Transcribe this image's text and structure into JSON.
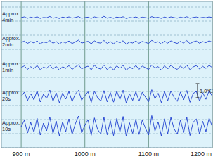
{
  "chart_data": {
    "type": "line",
    "x": [
      900,
      905,
      910,
      915,
      920,
      925,
      930,
      935,
      940,
      945,
      950,
      955,
      960,
      965,
      970,
      975,
      980,
      985,
      990,
      995,
      1000,
      1005,
      1010,
      1015,
      1020,
      1025,
      1030,
      1035,
      1040,
      1045,
      1050,
      1055,
      1060,
      1065,
      1070,
      1075,
      1080,
      1085,
      1090,
      1095,
      1100,
      1105,
      1110,
      1115,
      1120,
      1125,
      1130,
      1135,
      1140,
      1145,
      1150,
      1155,
      1160,
      1165,
      1170,
      1175,
      1180,
      1185,
      1190,
      1195,
      1200
    ],
    "series": [
      {
        "name": "Approx. 4min",
        "color": "#1f3fd0",
        "values": [
          9.25,
          9.3,
          9.2,
          9.28,
          9.22,
          9.31,
          9.19,
          9.26,
          9.24,
          9.33,
          9.2,
          9.27,
          9.18,
          9.29,
          9.23,
          9.3,
          9.21,
          9.26,
          9.32,
          9.2,
          9.25,
          9.28,
          9.19,
          9.3,
          9.24,
          9.22,
          9.34,
          9.21,
          9.27,
          9.2,
          9.29,
          9.24,
          9.31,
          9.18,
          9.26,
          9.23,
          9.3,
          9.21,
          9.28,
          9.25,
          9.2,
          9.32,
          9.24,
          9.27,
          9.19,
          9.29,
          9.22,
          9.3,
          9.25,
          9.21,
          9.28,
          9.23,
          9.31,
          9.2,
          9.26,
          9.29,
          9.22,
          9.27,
          9.24,
          9.3,
          9.25
        ]
      },
      {
        "name": "Approx. 2min",
        "color": "#1f3fd0",
        "values": [
          7.5,
          7.58,
          7.42,
          7.55,
          7.45,
          7.6,
          7.4,
          7.52,
          7.47,
          7.62,
          7.43,
          7.56,
          7.38,
          7.54,
          7.46,
          7.59,
          7.41,
          7.53,
          7.65,
          7.44,
          7.51,
          7.57,
          7.39,
          7.6,
          7.48,
          7.44,
          7.63,
          7.42,
          7.55,
          7.4,
          7.58,
          7.46,
          7.61,
          7.37,
          7.52,
          7.45,
          7.59,
          7.43,
          7.56,
          7.5,
          7.41,
          7.64,
          7.47,
          7.54,
          7.38,
          7.58,
          7.44,
          7.6,
          7.49,
          7.42,
          7.57,
          7.45,
          7.62,
          7.4,
          7.53,
          7.59,
          7.43,
          7.55,
          7.47,
          7.61,
          7.5
        ]
      },
      {
        "name": "Approx. 1min",
        "color": "#1f3fd0",
        "values": [
          5.7,
          5.82,
          5.58,
          5.76,
          5.62,
          5.85,
          5.55,
          5.73,
          5.65,
          5.88,
          5.6,
          5.79,
          5.52,
          5.77,
          5.64,
          5.84,
          5.57,
          5.75,
          5.9,
          5.61,
          5.72,
          5.8,
          5.54,
          5.86,
          5.67,
          5.59,
          5.89,
          5.56,
          5.78,
          5.53,
          5.83,
          5.63,
          5.87,
          5.5,
          5.74,
          5.62,
          5.85,
          5.58,
          5.8,
          5.7,
          5.56,
          5.9,
          5.66,
          5.77,
          5.52,
          5.83,
          5.6,
          5.86,
          5.68,
          5.57,
          5.81,
          5.63,
          5.88,
          5.55,
          5.75,
          5.84,
          5.59,
          5.79,
          5.64,
          5.86,
          5.7
        ]
      },
      {
        "name": "Approx. 20s",
        "color": "#1f3fd0",
        "values": [
          3.65,
          3.95,
          3.35,
          3.85,
          3.4,
          4.05,
          3.25,
          3.8,
          3.5,
          4.1,
          3.3,
          3.9,
          3.2,
          3.88,
          3.45,
          4.0,
          3.28,
          3.82,
          4.08,
          3.38,
          3.7,
          3.98,
          3.22,
          4.02,
          3.55,
          3.32,
          4.06,
          3.26,
          3.92,
          3.24,
          4.03,
          3.42,
          4.09,
          3.18,
          3.84,
          3.36,
          3.99,
          3.3,
          3.94,
          3.6,
          3.27,
          4.12,
          3.48,
          3.87,
          3.21,
          4.01,
          3.34,
          4.04,
          3.58,
          3.29,
          3.96,
          3.4,
          4.07,
          3.23,
          3.86,
          4.0,
          3.31,
          3.91,
          3.44,
          4.05,
          3.65
        ]
      },
      {
        "name": "Approx. 10s",
        "color": "#1f3fd0",
        "values": [
          1.5,
          1.95,
          1.05,
          1.8,
          1.1,
          2.1,
          0.9,
          1.75,
          1.2,
          2.2,
          1.0,
          1.9,
          0.85,
          1.85,
          1.15,
          2.05,
          0.95,
          1.7,
          2.25,
          1.05,
          1.6,
          2.0,
          0.88,
          2.12,
          1.3,
          0.98,
          2.18,
          0.92,
          1.92,
          0.86,
          2.08,
          1.12,
          2.22,
          0.8,
          1.78,
          1.02,
          2.02,
          0.94,
          1.96,
          1.4,
          0.9,
          2.28,
          1.18,
          1.84,
          0.84,
          2.06,
          1.0,
          2.15,
          1.35,
          0.95,
          1.98,
          1.08,
          2.16,
          0.87,
          1.82,
          2.04,
          0.96,
          1.88,
          1.14,
          2.1,
          1.5
        ]
      }
    ],
    "xlim": [
      869,
      1200
    ],
    "xticks": [
      {
        "value": 900,
        "label": "900 m"
      },
      {
        "value": 1000,
        "label": "1000 m"
      },
      {
        "value": 1100,
        "label": "1100 m"
      },
      {
        "value": 1200,
        "label": "1200 m"
      }
    ],
    "ylim": [
      0,
      10.4
    ],
    "yticks": [
      0,
      1,
      2,
      3,
      4,
      5,
      6,
      7,
      8,
      9,
      10
    ],
    "grid": true,
    "tick_labels": "x",
    "scale_bar": {
      "value": 1.0,
      "label": "1.0℃"
    }
  }
}
